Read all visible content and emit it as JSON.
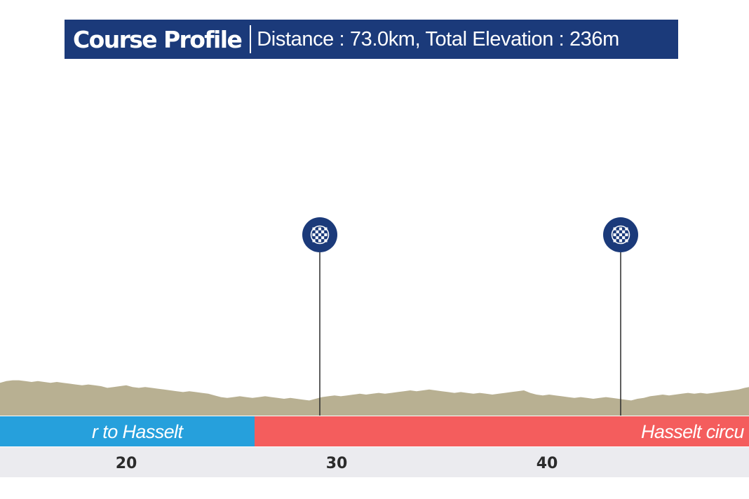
{
  "header": {
    "title": "Course Profile",
    "info": "Distance : 73.0km, Total Elevation : 236m"
  },
  "colors": {
    "header_bg": "#1b3a7a",
    "terrain": "#b8b092",
    "segment_blue": "#26a0dc",
    "segment_red": "#f45d5d",
    "axis_band": "#ebebef",
    "sprint_marker": "#1b3a7a"
  },
  "chart_data": {
    "type": "area",
    "title": "Course Profile",
    "xlabel": "",
    "ylabel": "",
    "xlim": [
      14.0,
      49.6
    ],
    "ylim": [
      0,
      100
    ],
    "x_ticks": [
      20,
      30,
      40
    ],
    "elevation_profile": {
      "x": [
        14.0,
        14.3,
        14.6,
        14.9,
        15.2,
        15.5,
        15.8,
        16.1,
        16.4,
        16.7,
        17.0,
        17.3,
        17.6,
        17.9,
        18.2,
        18.5,
        18.8,
        19.1,
        19.4,
        19.7,
        20.0,
        20.3,
        20.6,
        20.9,
        21.2,
        21.5,
        21.8,
        22.1,
        22.4,
        22.7,
        23.0,
        23.3,
        23.6,
        23.9,
        24.2,
        24.5,
        24.8,
        25.1,
        25.4,
        25.7,
        26.0,
        26.3,
        26.6,
        26.9,
        27.2,
        27.5,
        27.8,
        28.1,
        28.4,
        28.7,
        29.0,
        29.3,
        29.6,
        29.9,
        30.2,
        30.5,
        30.8,
        31.1,
        31.4,
        31.7,
        32.0,
        32.3,
        32.6,
        32.9,
        33.2,
        33.5,
        33.8,
        34.1,
        34.4,
        34.7,
        35.0,
        35.3,
        35.6,
        35.9,
        36.2,
        36.5,
        36.8,
        37.1,
        37.4,
        37.7,
        38.0,
        38.3,
        38.6,
        38.9,
        39.2,
        39.5,
        39.8,
        40.1,
        40.4,
        40.7,
        41.0,
        41.3,
        41.6,
        41.9,
        42.2,
        42.5,
        42.8,
        43.1,
        43.4,
        43.7,
        44.0,
        44.3,
        44.6,
        44.9,
        45.2,
        45.5,
        45.8,
        46.1,
        46.4,
        46.7,
        47.0,
        47.3,
        47.6,
        47.9,
        48.2,
        48.5,
        48.8,
        49.1,
        49.4,
        49.6
      ],
      "y": [
        39,
        41,
        42,
        42,
        41,
        40,
        41,
        40,
        39,
        40,
        39,
        38,
        37,
        36,
        37,
        36,
        35,
        33,
        34,
        35,
        36,
        34,
        33,
        34,
        33,
        32,
        31,
        30,
        29,
        28,
        29,
        28,
        27,
        26,
        24,
        22,
        21,
        22,
        23,
        22,
        21,
        22,
        23,
        22,
        21,
        20,
        21,
        20,
        19,
        18,
        20,
        22,
        23,
        24,
        23,
        24,
        25,
        26,
        25,
        26,
        27,
        26,
        27,
        28,
        29,
        30,
        29,
        30,
        31,
        30,
        29,
        28,
        27,
        28,
        27,
        26,
        27,
        26,
        25,
        26,
        27,
        28,
        29,
        30,
        27,
        25,
        24,
        25,
        24,
        23,
        22,
        21,
        22,
        21,
        20,
        21,
        22,
        21,
        20,
        19,
        18,
        20,
        21,
        23,
        24,
        25,
        24,
        25,
        26,
        27,
        26,
        27,
        26,
        27,
        28,
        29,
        30,
        31,
        33,
        34
      ]
    },
    "segments": [
      {
        "label": "r to Hasselt",
        "start": 14.0,
        "end": 26.1,
        "color": "#26a0dc"
      },
      {
        "label": "Hasselt circu",
        "start": 26.1,
        "end": 49.6,
        "color": "#f45d5d"
      }
    ],
    "sprint_markers": [
      {
        "x": 29.2,
        "icon": "checkered-flag-icon"
      },
      {
        "x": 43.5,
        "icon": "checkered-flag-icon"
      }
    ]
  }
}
